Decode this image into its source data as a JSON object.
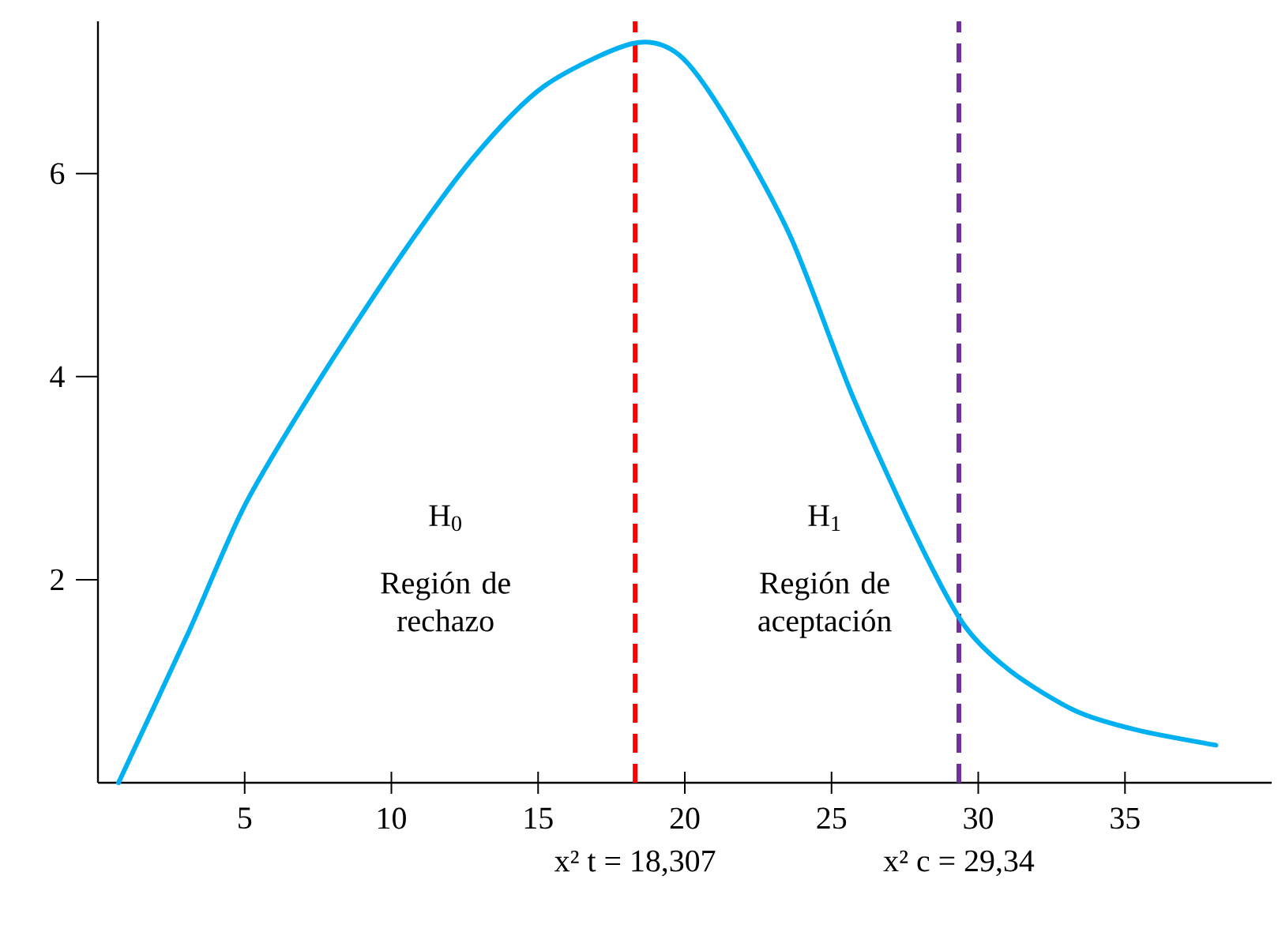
{
  "chart_data": {
    "type": "line",
    "x": [
      0.7,
      3.1,
      5,
      7.4,
      10.3,
      12.8,
      15.2,
      18.2,
      19.8,
      21.4,
      23.6,
      25.7,
      27.9,
      29.5,
      31.1,
      33.3,
      35.4,
      38.1
    ],
    "series": [
      {
        "color": "#00b0f0",
        "values": [
          0,
          1.49,
          2.73,
          3.9,
          5.18,
          6.16,
          6.86,
          7.28,
          7.17,
          6.55,
          5.38,
          3.82,
          2.42,
          1.56,
          1.1,
          0.71,
          0.52,
          0.37
        ]
      }
    ],
    "xlim": [
      0,
      40
    ],
    "ylim": [
      0,
      7.5
    ],
    "xticks": [
      5,
      10,
      15,
      20,
      25,
      30,
      35
    ],
    "yticks": [
      2,
      4,
      6
    ],
    "marker": "none",
    "line_style": "solid",
    "ref_lines": [
      {
        "axis": "x",
        "value": 18.307,
        "label": "x² t = 18,307",
        "color": "#ff0000",
        "line_style": "dashed"
      },
      {
        "axis": "x",
        "value": 29.34,
        "label": "x² c = 29,34",
        "color": "#7030a0",
        "line_style": "dashed"
      }
    ],
    "annotations": [
      "H$_{0}$",
      "Región de rechazo",
      "H$_{1}$",
      "Región de aceptación"
    ]
  }
}
